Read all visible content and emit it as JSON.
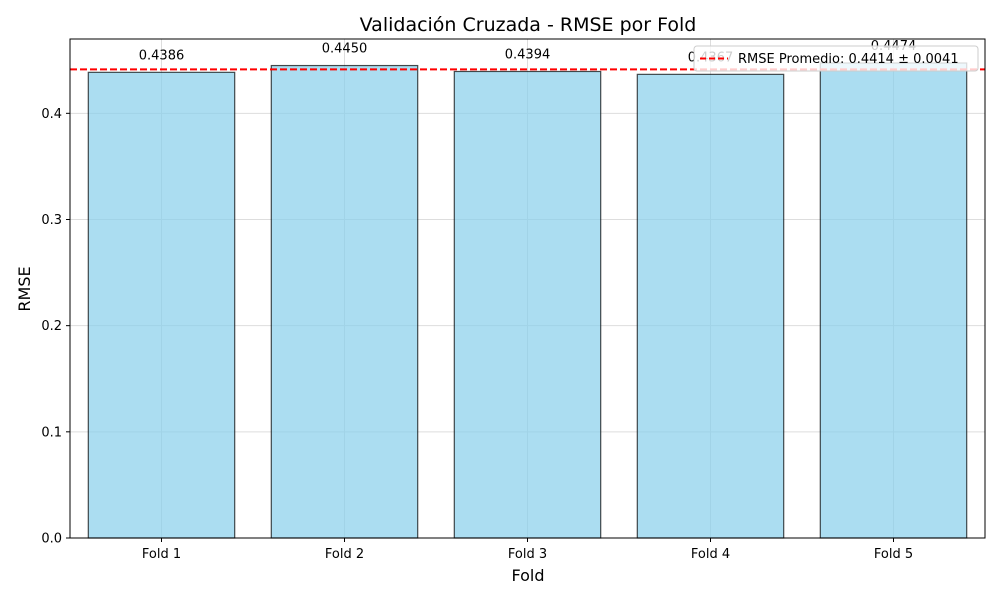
{
  "chart_data": {
    "type": "bar",
    "title": "Validación Cruzada - RMSE por Fold",
    "xlabel": "Fold",
    "ylabel": "RMSE",
    "categories": [
      "Fold 1",
      "Fold 2",
      "Fold 3",
      "Fold 4",
      "Fold 5"
    ],
    "values": [
      0.4386,
      0.445,
      0.4394,
      0.4367,
      0.4474
    ],
    "data_labels": [
      "0.4386",
      "0.4450",
      "0.4394",
      "0.4367",
      "0.4474"
    ],
    "ylim": [
      0,
      0.47
    ],
    "yticks": [
      0.0,
      0.1,
      0.2,
      0.3,
      0.4
    ],
    "ytick_labels": [
      "0.0",
      "0.1",
      "0.2",
      "0.3",
      "0.4"
    ],
    "mean_line": {
      "value": 0.4414,
      "label": "RMSE Promedio: 0.4414 ± 0.0041",
      "color": "#ff0000",
      "style": "dashed"
    },
    "bar_color": "#87ceeb",
    "bar_edge_color": "#000000",
    "grid": true,
    "legend_position": "top-right"
  }
}
